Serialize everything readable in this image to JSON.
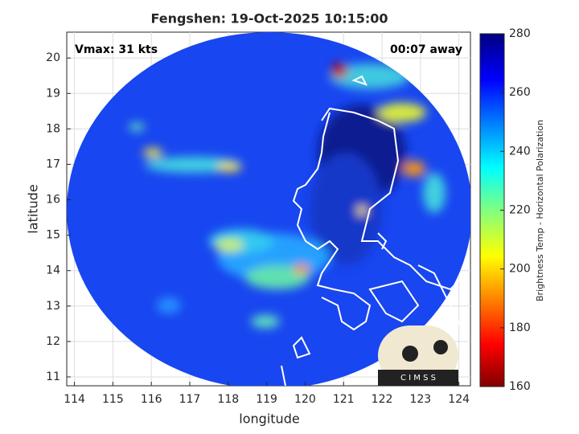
{
  "map": {
    "title": "Fengshen: 19-Oct-2025 10:15:00",
    "annotations": {
      "left": "Vmax: 31 kts",
      "right": "00:07 away"
    },
    "xlabel": "longitude",
    "ylabel": "latitude",
    "xlim": [
      113.8,
      124.3
    ],
    "ylim": [
      10.75,
      20.73
    ],
    "xticks": [
      114,
      115,
      116,
      117,
      118,
      119,
      120,
      121,
      122,
      123,
      124
    ],
    "yticks": [
      11,
      12,
      13,
      14,
      15,
      16,
      17,
      18,
      19,
      20
    ],
    "colorbar": {
      "label": "Brightness Temp - Horizontal Polarization",
      "lim": [
        160,
        280
      ],
      "ticks": [
        160,
        180,
        200,
        220,
        240,
        260,
        280
      ]
    },
    "logo": "C I M S S"
  }
}
